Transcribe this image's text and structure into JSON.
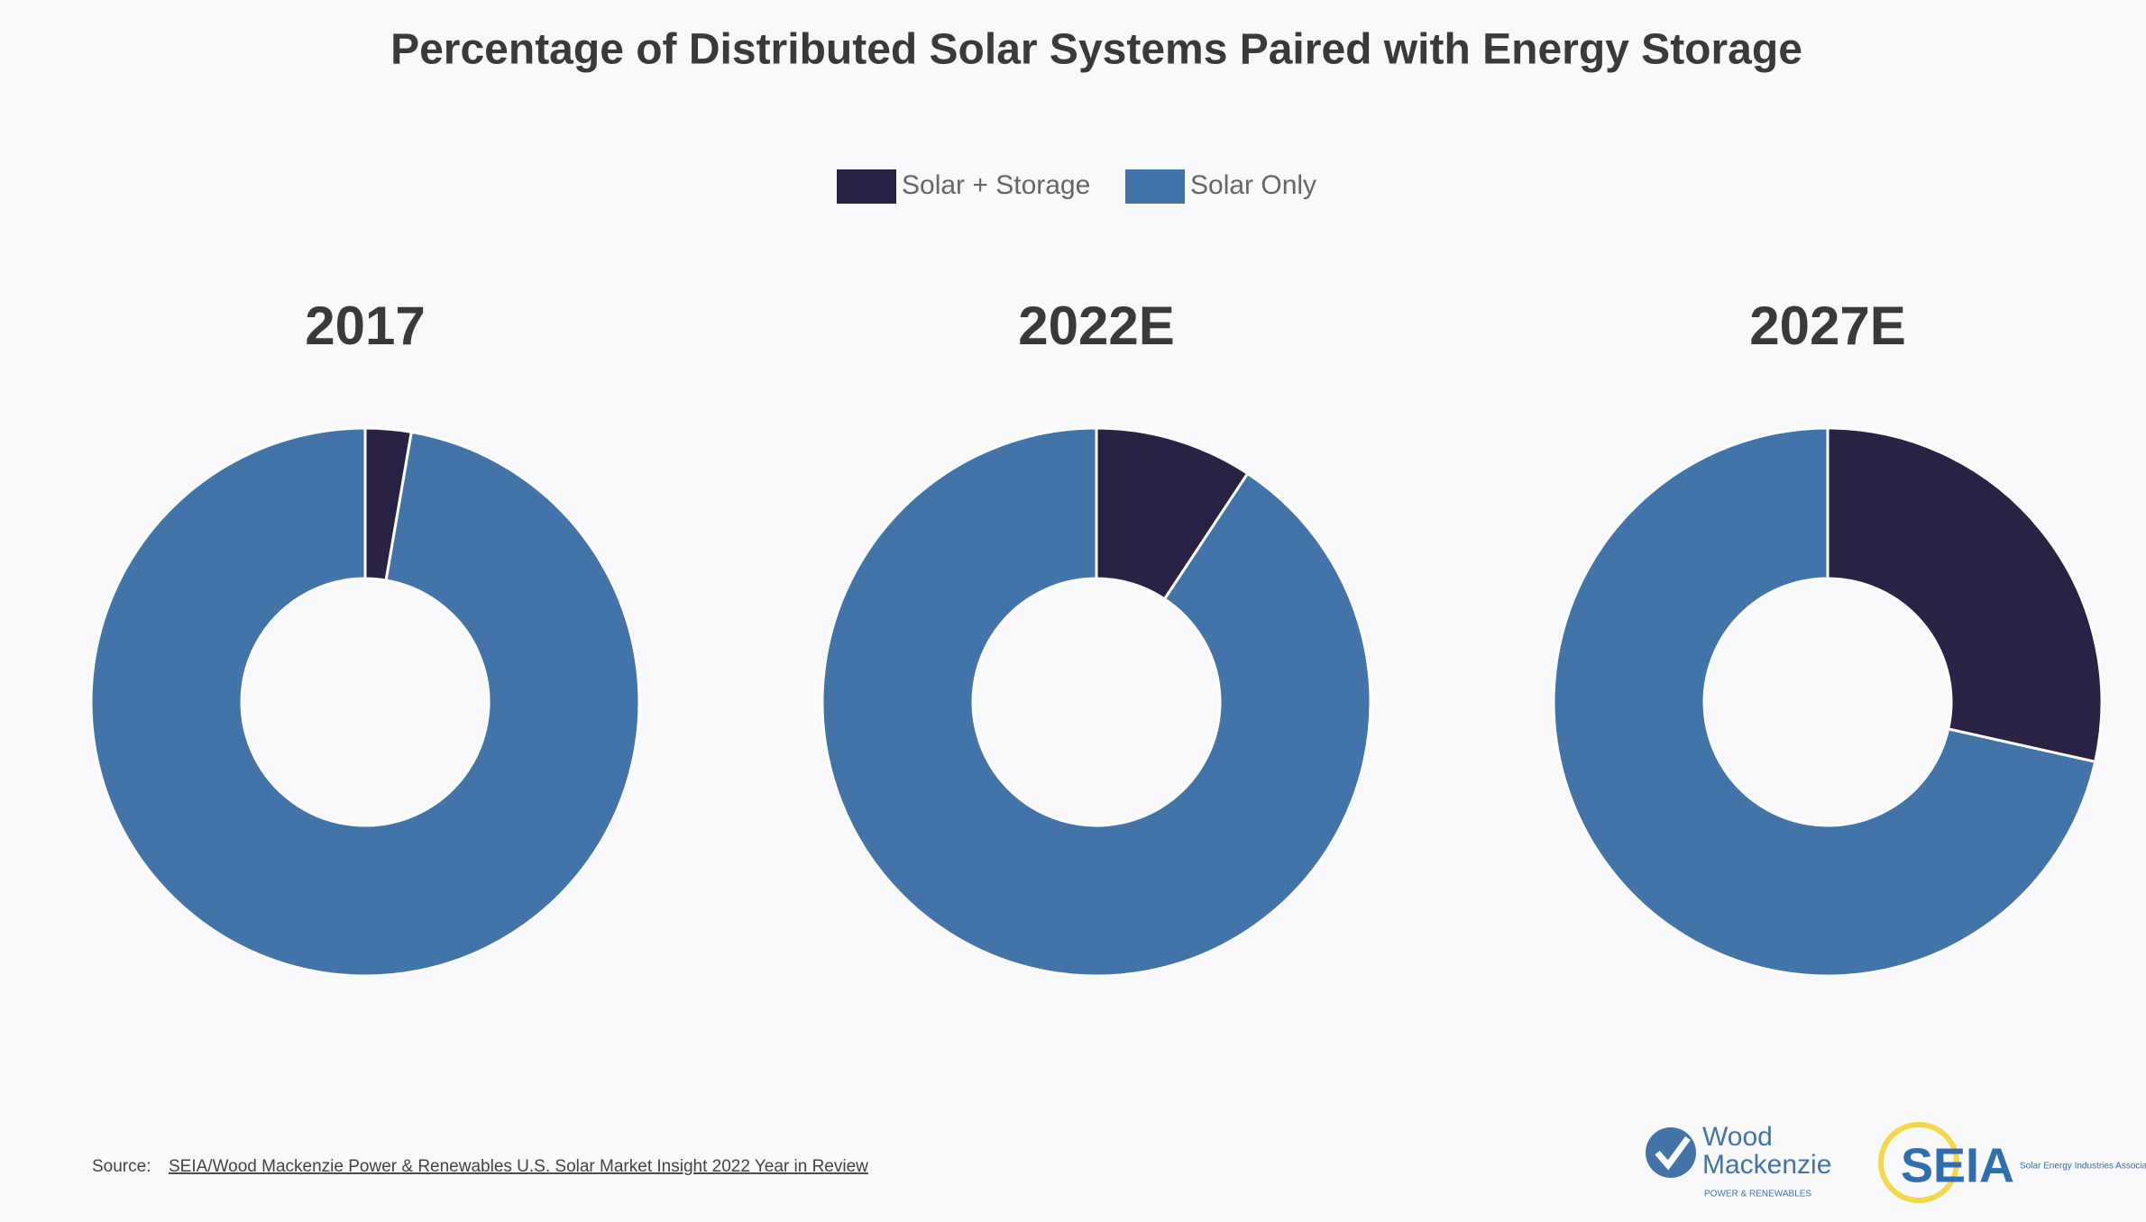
{
  "title": "Percentage of Distributed Solar Systems Paired with Energy Storage",
  "chart_data": [
    {
      "type": "pie",
      "title": "2017",
      "categories": [
        "Solar + Storage",
        "Solar Only"
      ],
      "values": [
        2.7,
        97.3
      ],
      "colors": [
        "#2a2245",
        "#4274a9"
      ]
    },
    {
      "type": "pie",
      "title": "2022E",
      "categories": [
        "Solar + Storage",
        "Solar Only"
      ],
      "values": [
        9.3,
        90.7
      ],
      "colors": [
        "#2a2245",
        "#4274a9"
      ]
    },
    {
      "type": "pie",
      "title": "2027E",
      "categories": [
        "Solar + Storage",
        "Solar Only"
      ],
      "values": [
        28.5,
        71.5
      ],
      "colors": [
        "#2a2245",
        "#4274a9"
      ]
    }
  ],
  "source": {
    "label": "Source:",
    "link": "SEIA/Wood Mackenzie Power & Renewables U.S. Solar Market Insight 2022 Year in Review"
  },
  "logos": {
    "wood": "Wood",
    "mackenzie": "Mackenzie",
    "wood_sub": "POWER & RENEWABLES",
    "seia": "SEIA",
    "seia_sub": "Solar Energy Industries Association"
  }
}
